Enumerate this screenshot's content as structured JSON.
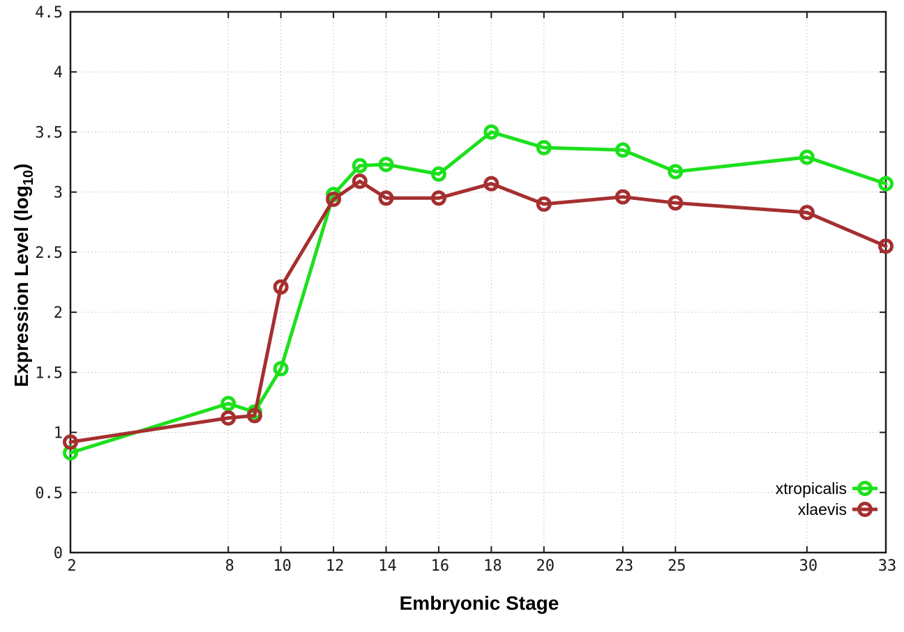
{
  "page": {
    "background_color": "#ffffff"
  },
  "chart_data": {
    "type": "line",
    "title": "",
    "xlabel": "Embryonic Stage",
    "ylabel_prefix": "Expression Level (log",
    "ylabel_sub": "10",
    "ylabel_suffix": ")",
    "xlim": [
      2,
      33
    ],
    "ylim": [
      0,
      4.5
    ],
    "xticks": [
      2,
      8,
      10,
      12,
      14,
      16,
      18,
      20,
      23,
      25,
      30,
      33
    ],
    "yticks": [
      "0",
      "0.5",
      "1",
      "1.5",
      "2",
      "2.5",
      "3",
      "3.5",
      "4",
      "4.5"
    ],
    "grid": "dotted",
    "grid_color": "#bbbbbb",
    "axis_color": "#1c1c1c",
    "text_color": "#1a1a1a",
    "legend_position": "inside-bottom-right",
    "x": [
      2,
      8,
      9,
      10,
      12,
      13,
      14,
      16,
      18,
      20,
      23,
      25,
      30,
      33
    ],
    "series": [
      {
        "name": "xtropicalis",
        "color": "#1de01d",
        "marker": "open-circle",
        "values": [
          0.83,
          1.24,
          1.17,
          1.53,
          2.98,
          3.22,
          3.23,
          3.15,
          3.5,
          3.37,
          3.35,
          3.17,
          3.29,
          3.07
        ]
      },
      {
        "name": "xlaevis",
        "color": "#a52f2f",
        "marker": "open-circle",
        "values": [
          0.92,
          1.12,
          1.14,
          2.21,
          2.94,
          3.09,
          2.95,
          2.95,
          3.07,
          2.9,
          2.96,
          2.91,
          2.83,
          2.55
        ]
      }
    ]
  }
}
